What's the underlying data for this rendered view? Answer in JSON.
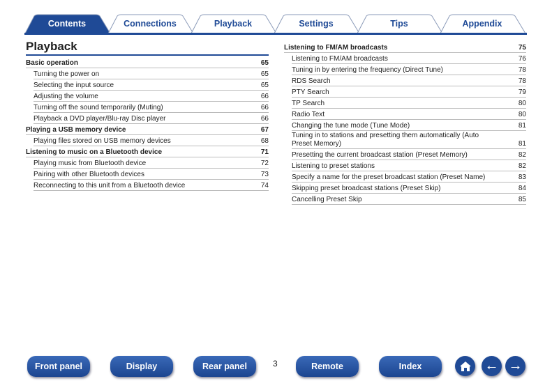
{
  "tabs": [
    {
      "label": "Contents",
      "active": true
    },
    {
      "label": "Connections"
    },
    {
      "label": "Playback"
    },
    {
      "label": "Settings"
    },
    {
      "label": "Tips"
    },
    {
      "label": "Appendix"
    }
  ],
  "title": "Playback",
  "left": [
    {
      "t": "Basic operation",
      "p": "65",
      "h": true
    },
    {
      "t": "Turning the power on",
      "p": "65"
    },
    {
      "t": "Selecting the input source",
      "p": "65"
    },
    {
      "t": "Adjusting the volume",
      "p": "66"
    },
    {
      "t": "Turning off the sound temporarily (Muting)",
      "p": "66"
    },
    {
      "t": "Playback a DVD player/Blu-ray Disc player",
      "p": "66"
    },
    {
      "t": "Playing a USB memory device",
      "p": "67",
      "h": true
    },
    {
      "t": "Playing files stored on USB memory devices",
      "p": "68"
    },
    {
      "t": "Listening to music on a Bluetooth device",
      "p": "71",
      "h": true
    },
    {
      "t": "Playing music from Bluetooth device",
      "p": "72"
    },
    {
      "t": "Pairing with other Bluetooth devices",
      "p": "73"
    },
    {
      "t": "Reconnecting to this unit from a Bluetooth device",
      "p": "74"
    }
  ],
  "right": [
    {
      "t": "Listening to FM/AM broadcasts",
      "p": "75",
      "h": true
    },
    {
      "t": "Listening to FM/AM broadcasts",
      "p": "76"
    },
    {
      "t": "Tuning in by entering the frequency (Direct Tune)",
      "p": "78"
    },
    {
      "t": "RDS Search",
      "p": "78"
    },
    {
      "t": "PTY Search",
      "p": "79"
    },
    {
      "t": "TP Search",
      "p": "80"
    },
    {
      "t": "Radio Text",
      "p": "80"
    },
    {
      "t": "Changing the tune mode (Tune Mode)",
      "p": "81"
    },
    {
      "t": "Tuning in to stations and presetting them automatically (Auto Preset Memory)",
      "p": "81"
    },
    {
      "t": "Presetting the current broadcast station (Preset Memory)",
      "p": "82"
    },
    {
      "t": "Listening to preset stations",
      "p": "82"
    },
    {
      "t": "Specify a name for the preset broadcast station (Preset Name)",
      "p": "83"
    },
    {
      "t": "Skipping preset broadcast stations (Preset Skip)",
      "p": "84"
    },
    {
      "t": "Cancelling Preset Skip",
      "p": "85"
    }
  ],
  "footer": {
    "buttons": [
      "Front panel",
      "Display",
      "Rear panel",
      "Remote",
      "Index"
    ],
    "page": "3",
    "icons": [
      "home-icon",
      "arrow-left-icon",
      "arrow-right-icon"
    ]
  },
  "colors": {
    "accent": "#1f4a96"
  }
}
